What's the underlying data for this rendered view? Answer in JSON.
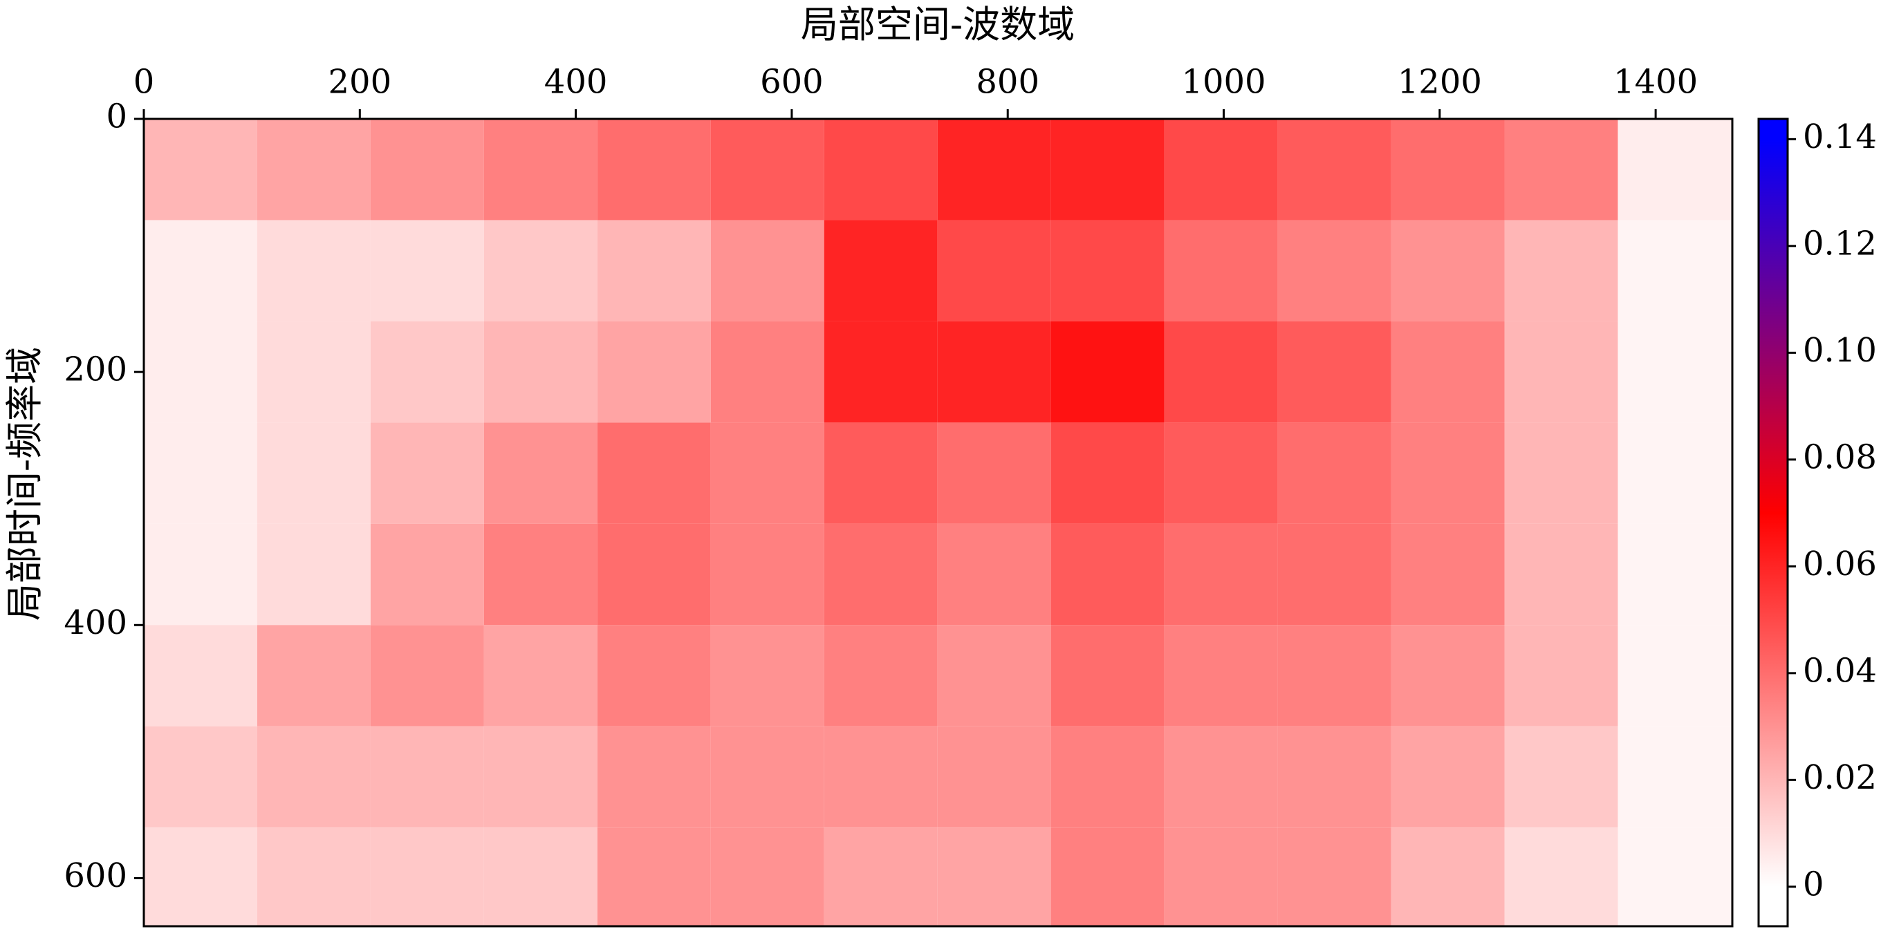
{
  "chart_data": {
    "type": "heatmap",
    "title": "局部空间-波数域",
    "y_label": "局部时间-频率域",
    "xlim": [
      0,
      1471
    ],
    "xticks": [
      0,
      200,
      400,
      600,
      800,
      1000,
      1200,
      1400
    ],
    "ylim": [
      638,
      0
    ],
    "yticks": [
      0,
      200,
      400,
      600
    ],
    "xbins": [
      0,
      105,
      210,
      315,
      420,
      525,
      630,
      735,
      840,
      945,
      1050,
      1155,
      1260,
      1365,
      1470
    ],
    "ybins": [
      0,
      80,
      160,
      240,
      320,
      400,
      480,
      560,
      638
    ],
    "z": [
      [
        0.02,
        0.025,
        0.03,
        0.035,
        0.04,
        0.045,
        0.05,
        0.06,
        0.06,
        0.05,
        0.045,
        0.04,
        0.035,
        0.005
      ],
      [
        0.005,
        0.01,
        0.01,
        0.015,
        0.02,
        0.03,
        0.06,
        0.05,
        0.05,
        0.04,
        0.035,
        0.03,
        0.02,
        0.003
      ],
      [
        0.005,
        0.01,
        0.015,
        0.02,
        0.025,
        0.035,
        0.06,
        0.06,
        0.065,
        0.05,
        0.045,
        0.035,
        0.02,
        0.003
      ],
      [
        0.005,
        0.01,
        0.02,
        0.03,
        0.04,
        0.035,
        0.045,
        0.04,
        0.05,
        0.045,
        0.04,
        0.035,
        0.02,
        0.003
      ],
      [
        0.005,
        0.01,
        0.025,
        0.035,
        0.04,
        0.035,
        0.04,
        0.035,
        0.045,
        0.04,
        0.04,
        0.035,
        0.02,
        0.003
      ],
      [
        0.01,
        0.025,
        0.03,
        0.025,
        0.035,
        0.03,
        0.035,
        0.03,
        0.04,
        0.035,
        0.035,
        0.03,
        0.02,
        0.003
      ],
      [
        0.015,
        0.02,
        0.02,
        0.02,
        0.03,
        0.03,
        0.03,
        0.03,
        0.035,
        0.03,
        0.03,
        0.025,
        0.015,
        0.003
      ],
      [
        0.01,
        0.015,
        0.015,
        0.015,
        0.03,
        0.03,
        0.025,
        0.025,
        0.035,
        0.03,
        0.03,
        0.02,
        0.01,
        0.003
      ]
    ],
    "clim": [
      -0.0074,
      0.1438
    ],
    "cticks": [
      0,
      0.02,
      0.04,
      0.06,
      0.08,
      {
        "value": 0.1,
        "label": "0.10"
      },
      0.12,
      0.14
    ],
    "colorscale": [
      [
        0,
        "#ffffff"
      ],
      [
        0.07,
        "#ff0000"
      ],
      [
        0.14,
        "#0000ff"
      ]
    ]
  }
}
